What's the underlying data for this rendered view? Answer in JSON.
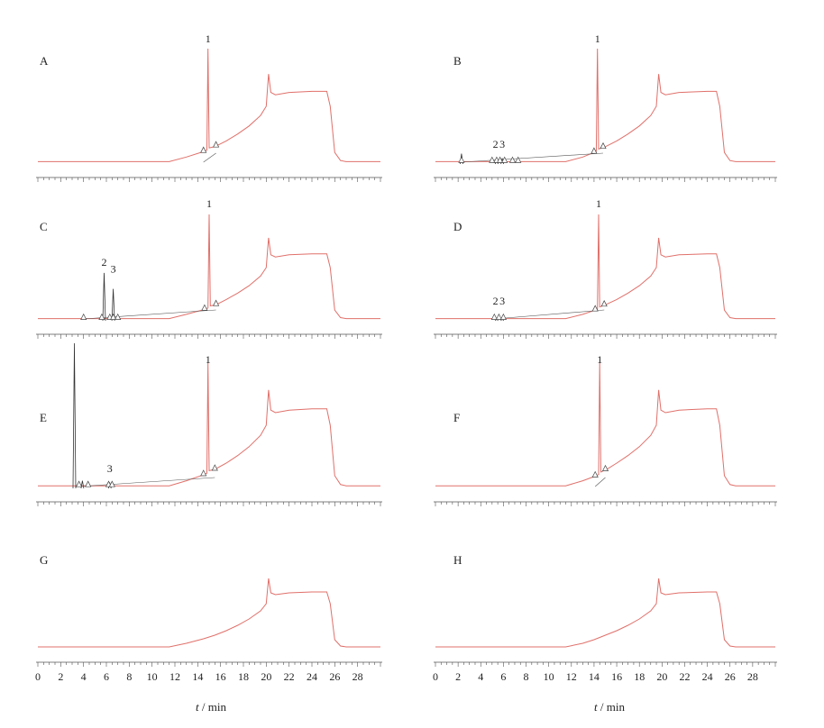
{
  "chart_data": {
    "type": "line",
    "x_unit": "min",
    "xlim": [
      0,
      30
    ],
    "x_ticks": [
      "0",
      "2",
      "4",
      "6",
      "8",
      "10",
      "12",
      "14",
      "16",
      "18",
      "20",
      "22",
      "24",
      "26",
      "28"
    ],
    "xlabel_var": "t",
    "xlabel_unit": " / min",
    "line_color": "#e0706a",
    "panels": [
      {
        "label": "A",
        "peaks": [
          {
            "label": "1",
            "x": 14.9
          }
        ],
        "integration_marks": [
          14.5,
          15.6
        ],
        "trace": [
          [
            0,
            0.02
          ],
          [
            11.5,
            0.02
          ],
          [
            13,
            0.06
          ],
          [
            14.6,
            0.11
          ],
          [
            14.8,
            0.12
          ],
          [
            14.9,
            1.0
          ],
          [
            15.0,
            0.14
          ],
          [
            15.5,
            0.15
          ],
          [
            16.5,
            0.2
          ],
          [
            17.5,
            0.26
          ],
          [
            18.5,
            0.33
          ],
          [
            19.5,
            0.42
          ],
          [
            20.0,
            0.5
          ],
          [
            20.2,
            0.78
          ],
          [
            20.4,
            0.62
          ],
          [
            20.8,
            0.6
          ],
          [
            22,
            0.62
          ],
          [
            24,
            0.63
          ],
          [
            25.3,
            0.63
          ],
          [
            25.6,
            0.5
          ],
          [
            26.0,
            0.1
          ],
          [
            26.5,
            0.03
          ],
          [
            27,
            0.02
          ],
          [
            30,
            0.02
          ]
        ]
      },
      {
        "label": "B",
        "peaks": [
          {
            "label": "1",
            "x": 14.3
          },
          {
            "label": "2",
            "x": 5.3
          },
          {
            "label": "3",
            "x": 5.9
          }
        ],
        "integration_marks": [
          2.3,
          5.0,
          5.4,
          5.7,
          6.1,
          6.8,
          7.3,
          14.0,
          14.8
        ],
        "small_peaks": [
          [
            2.3,
            0.09
          ],
          [
            5.4,
            0.05
          ],
          [
            5.9,
            0.05
          ]
        ],
        "trace": [
          [
            0,
            0.02
          ],
          [
            11.5,
            0.02
          ],
          [
            13,
            0.06
          ],
          [
            14.0,
            0.1
          ],
          [
            14.2,
            0.11
          ],
          [
            14.3,
            1.0
          ],
          [
            14.4,
            0.13
          ],
          [
            15.0,
            0.15
          ],
          [
            16,
            0.2
          ],
          [
            17,
            0.26
          ],
          [
            18,
            0.33
          ],
          [
            19,
            0.42
          ],
          [
            19.5,
            0.5
          ],
          [
            19.7,
            0.78
          ],
          [
            19.9,
            0.62
          ],
          [
            20.3,
            0.6
          ],
          [
            21.5,
            0.62
          ],
          [
            24,
            0.63
          ],
          [
            24.8,
            0.63
          ],
          [
            25.1,
            0.5
          ],
          [
            25.5,
            0.1
          ],
          [
            26,
            0.03
          ],
          [
            26.5,
            0.02
          ],
          [
            30,
            0.02
          ]
        ]
      },
      {
        "label": "C",
        "peaks": [
          {
            "label": "1",
            "x": 15.0
          },
          {
            "label": "2",
            "x": 5.8
          },
          {
            "label": "3",
            "x": 6.6
          }
        ],
        "integration_marks": [
          4.0,
          5.6,
          6.3,
          6.6,
          7.0,
          14.6,
          15.6
        ],
        "small_peaks": [
          [
            5.8,
            0.45
          ],
          [
            6.6,
            0.3
          ]
        ],
        "trace": [
          [
            0,
            0.02
          ],
          [
            11.5,
            0.02
          ],
          [
            13,
            0.06
          ],
          [
            14.7,
            0.11
          ],
          [
            14.9,
            0.12
          ],
          [
            15.0,
            1.0
          ],
          [
            15.1,
            0.14
          ],
          [
            15.6,
            0.15
          ],
          [
            16.5,
            0.2
          ],
          [
            17.5,
            0.26
          ],
          [
            18.5,
            0.33
          ],
          [
            19.5,
            0.42
          ],
          [
            20.0,
            0.5
          ],
          [
            20.2,
            0.78
          ],
          [
            20.4,
            0.62
          ],
          [
            20.8,
            0.6
          ],
          [
            22,
            0.62
          ],
          [
            24,
            0.63
          ],
          [
            25.3,
            0.63
          ],
          [
            25.6,
            0.5
          ],
          [
            26.0,
            0.1
          ],
          [
            26.5,
            0.03
          ],
          [
            27,
            0.02
          ],
          [
            30,
            0.02
          ]
        ]
      },
      {
        "label": "D",
        "peaks": [
          {
            "label": "1",
            "x": 14.4
          },
          {
            "label": "2",
            "x": 5.3
          },
          {
            "label": "3",
            "x": 5.9
          }
        ],
        "integration_marks": [
          5.2,
          5.6,
          6.0,
          14.1,
          14.9
        ],
        "small_peaks": [
          [
            5.4,
            0.02
          ],
          [
            5.9,
            0.02
          ]
        ],
        "trace": [
          [
            0,
            0.02
          ],
          [
            11.5,
            0.02
          ],
          [
            13,
            0.06
          ],
          [
            14.1,
            0.1
          ],
          [
            14.3,
            0.11
          ],
          [
            14.4,
            1.0
          ],
          [
            14.5,
            0.13
          ],
          [
            15.0,
            0.15
          ],
          [
            16,
            0.2
          ],
          [
            17,
            0.26
          ],
          [
            18,
            0.33
          ],
          [
            19,
            0.42
          ],
          [
            19.5,
            0.5
          ],
          [
            19.7,
            0.78
          ],
          [
            19.9,
            0.62
          ],
          [
            20.3,
            0.6
          ],
          [
            21.5,
            0.62
          ],
          [
            24,
            0.63
          ],
          [
            24.8,
            0.63
          ],
          [
            25.1,
            0.5
          ],
          [
            25.5,
            0.1
          ],
          [
            26,
            0.03
          ],
          [
            26.5,
            0.02
          ],
          [
            30,
            0.02
          ]
        ]
      },
      {
        "label": "E",
        "peaks": [
          {
            "label": "1",
            "x": 14.9
          },
          {
            "label": "3",
            "x": 6.3
          }
        ],
        "integration_marks": [
          3.6,
          4.4,
          6.2,
          6.5,
          14.5,
          15.5
        ],
        "small_peaks": [
          [
            3.2,
            1.15
          ],
          [
            3.9,
            0.06
          ],
          [
            6.3,
            0.04
          ]
        ],
        "trace": [
          [
            0,
            0.02
          ],
          [
            11.5,
            0.02
          ],
          [
            13,
            0.06
          ],
          [
            14.6,
            0.11
          ],
          [
            14.8,
            0.12
          ],
          [
            14.9,
            1.0
          ],
          [
            15.0,
            0.14
          ],
          [
            15.5,
            0.15
          ],
          [
            16.5,
            0.2
          ],
          [
            17.5,
            0.26
          ],
          [
            18.5,
            0.33
          ],
          [
            19.5,
            0.42
          ],
          [
            20.0,
            0.5
          ],
          [
            20.2,
            0.78
          ],
          [
            20.4,
            0.62
          ],
          [
            20.8,
            0.6
          ],
          [
            22,
            0.62
          ],
          [
            24,
            0.63
          ],
          [
            25.3,
            0.63
          ],
          [
            25.6,
            0.5
          ],
          [
            26.0,
            0.1
          ],
          [
            26.5,
            0.03
          ],
          [
            27,
            0.02
          ],
          [
            30,
            0.02
          ]
        ]
      },
      {
        "label": "F",
        "peaks": [
          {
            "label": "1",
            "x": 14.5
          }
        ],
        "integration_marks": [
          14.1,
          15.0
        ],
        "trace": [
          [
            0,
            0.02
          ],
          [
            11.5,
            0.02
          ],
          [
            13,
            0.06
          ],
          [
            14.2,
            0.1
          ],
          [
            14.4,
            0.11
          ],
          [
            14.5,
            1.0
          ],
          [
            14.6,
            0.13
          ],
          [
            15.1,
            0.15
          ],
          [
            16,
            0.2
          ],
          [
            17,
            0.26
          ],
          [
            18,
            0.33
          ],
          [
            19,
            0.42
          ],
          [
            19.5,
            0.5
          ],
          [
            19.7,
            0.78
          ],
          [
            19.9,
            0.62
          ],
          [
            20.3,
            0.6
          ],
          [
            21.5,
            0.62
          ],
          [
            24,
            0.63
          ],
          [
            24.8,
            0.63
          ],
          [
            25.1,
            0.5
          ],
          [
            25.5,
            0.1
          ],
          [
            26,
            0.03
          ],
          [
            26.5,
            0.02
          ],
          [
            30,
            0.02
          ]
        ]
      },
      {
        "label": "G",
        "peaks": [],
        "integration_marks": [],
        "trace": [
          [
            0,
            0.02
          ],
          [
            11.5,
            0.02
          ],
          [
            13,
            0.06
          ],
          [
            14.5,
            0.11
          ],
          [
            15.5,
            0.15
          ],
          [
            16.5,
            0.2
          ],
          [
            17.5,
            0.26
          ],
          [
            18.5,
            0.33
          ],
          [
            19.5,
            0.42
          ],
          [
            20.0,
            0.5
          ],
          [
            20.2,
            0.78
          ],
          [
            20.4,
            0.62
          ],
          [
            20.8,
            0.6
          ],
          [
            22,
            0.62
          ],
          [
            24,
            0.63
          ],
          [
            25.3,
            0.63
          ],
          [
            25.6,
            0.5
          ],
          [
            26.0,
            0.1
          ],
          [
            26.5,
            0.03
          ],
          [
            27,
            0.02
          ],
          [
            30,
            0.02
          ]
        ]
      },
      {
        "label": "H",
        "peaks": [],
        "integration_marks": [],
        "trace": [
          [
            0,
            0.02
          ],
          [
            11.5,
            0.02
          ],
          [
            13,
            0.06
          ],
          [
            14.0,
            0.1
          ],
          [
            15.0,
            0.15
          ],
          [
            16,
            0.2
          ],
          [
            17,
            0.26
          ],
          [
            18,
            0.33
          ],
          [
            19,
            0.42
          ],
          [
            19.5,
            0.5
          ],
          [
            19.7,
            0.78
          ],
          [
            19.9,
            0.62
          ],
          [
            20.3,
            0.6
          ],
          [
            21.5,
            0.62
          ],
          [
            24,
            0.63
          ],
          [
            24.8,
            0.63
          ],
          [
            25.1,
            0.5
          ],
          [
            25.5,
            0.1
          ],
          [
            26,
            0.03
          ],
          [
            26.5,
            0.02
          ],
          [
            30,
            0.02
          ]
        ]
      }
    ]
  }
}
